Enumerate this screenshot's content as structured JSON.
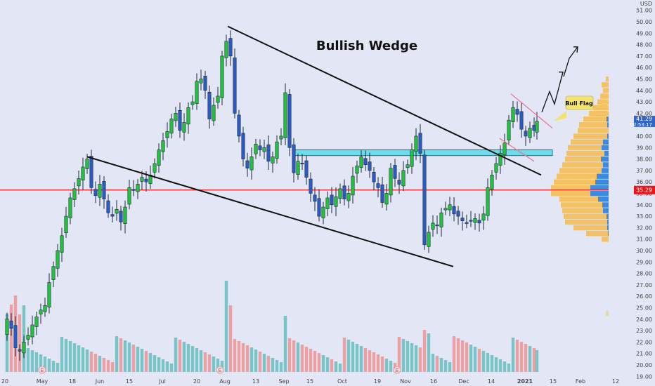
{
  "chart_data": {
    "type": "candlestick",
    "title": "Bullish Wedge",
    "annotation": "Bull Flag",
    "currency_label": "USD",
    "y_ticks": [
      "51.00",
      "50.00",
      "49.00",
      "48.00",
      "47.00",
      "46.00",
      "45.00",
      "44.00",
      "43.00",
      "42.00",
      "41.00",
      "40.00",
      "39.00",
      "38.00",
      "37.00",
      "36.00",
      "35.00",
      "34.00",
      "33.00",
      "32.00",
      "31.00",
      "30.00",
      "29.00",
      "28.00",
      "27.00",
      "26.00",
      "25.00",
      "24.00",
      "23.00",
      "22.00",
      "21.00",
      "20.00",
      "19.00"
    ],
    "y_range": [
      18.5,
      51.5
    ],
    "last_price_label": "41.29",
    "countdown_label": "02:53:17",
    "support_price_label": "35.29",
    "support_price": 35.29,
    "x_ticks": [
      "20",
      "May",
      "18",
      "Jun",
      "15",
      "Jul",
      "20",
      "Aug",
      "13",
      "Sep",
      "15",
      "Oct",
      "19",
      "Nov",
      "16",
      "Dec",
      "14",
      "2021",
      "15",
      "Feb",
      "12"
    ],
    "earnings_marker": "E",
    "colors": {
      "up": "#22c43b",
      "down": "#2b5cc4",
      "support_line": "#e8171c",
      "resistance_zone": "#6fdceb",
      "bull_flag_lines": "#f06e8a",
      "callout": "#f3e472",
      "volume_profile_up": "#f4c262",
      "volume_profile_down": "#3c8be0",
      "volume_up": "#5fbcbc",
      "volume_down": "#ef8e8e"
    }
  }
}
